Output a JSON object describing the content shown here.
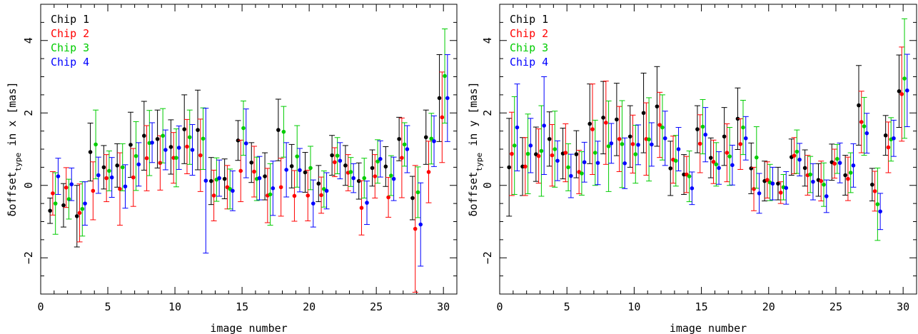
{
  "chart_data": [
    {
      "type": "scatter",
      "title": "",
      "xlabel": "image number",
      "ylabel": "δoffset",
      "ylabel_sub": "type",
      "ylabel_tail": " in x [mas]",
      "xlim": [
        0,
        31
      ],
      "ylim": [
        -3,
        5
      ],
      "xticks": [
        0,
        5,
        10,
        15,
        20,
        25,
        30
      ],
      "yticks": [
        -2,
        0,
        2,
        4
      ],
      "legend_position": "top-left",
      "grid": false,
      "series": [
        {
          "name": "Chip 1",
          "color": "#000000",
          "offset": -0.3,
          "y": [
            -0.7,
            -0.55,
            -0.85,
            0.92,
            0.5,
            0.55,
            1.12,
            1.37,
            1.28,
            1.06,
            1.55,
            1.53,
            0.12,
            0.18,
            1.24,
            0.63,
            0.25,
            1.53,
            0.53,
            0.36,
            0.05,
            0.83,
            0.55,
            0.12,
            0.48,
            0.52,
            1.28,
            -0.35,
            1.33,
            2.41
          ],
          "err": [
            0.35,
            0.6,
            0.85,
            0.8,
            0.6,
            0.6,
            0.9,
            0.95,
            0.8,
            0.75,
            0.95,
            1.1,
            0.65,
            0.55,
            0.55,
            0.55,
            0.65,
            0.85,
            0.6,
            0.55,
            0.5,
            0.55,
            0.55,
            0.5,
            0.5,
            0.55,
            0.6,
            0.6,
            0.75,
            1.2
          ]
        },
        {
          "name": "Chip 2",
          "color": "#ff0000",
          "offset": -0.1,
          "y": [
            -0.22,
            -0.06,
            -0.76,
            -0.15,
            0.2,
            -0.1,
            0.22,
            0.75,
            0.62,
            0.76,
            1.07,
            0.83,
            -0.28,
            -0.05,
            0.4,
            0.38,
            -0.28,
            -0.05,
            -0.29,
            -0.28,
            -0.27,
            0.64,
            0.35,
            -0.62,
            0.25,
            -0.33,
            0.76,
            -1.2,
            0.37,
            1.88
          ],
          "err": [
            0.6,
            0.55,
            0.8,
            0.8,
            0.65,
            1.0,
            0.8,
            0.9,
            0.75,
            0.7,
            0.75,
            1.0,
            0.7,
            0.6,
            0.85,
            0.7,
            0.75,
            0.8,
            0.7,
            0.7,
            0.5,
            0.4,
            0.5,
            0.75,
            0.6,
            0.55,
            1.1,
            1.75,
            0.85,
            1.25
          ]
        },
        {
          "name": "Chip 3",
          "color": "#00cc00",
          "offset": 0.1,
          "y": [
            -0.5,
            -0.38,
            -0.65,
            1.13,
            0.4,
            0.5,
            0.81,
            1.17,
            1.37,
            0.76,
            1.33,
            1.29,
            0.16,
            -0.1,
            1.58,
            0.18,
            -0.25,
            1.48,
            0.8,
            0.48,
            -0.1,
            0.82,
            0.37,
            0.2,
            0.66,
            0.27,
            1.13,
            -0.19,
            1.29,
            3.02
          ],
          "err": [
            0.85,
            0.55,
            0.75,
            0.95,
            0.55,
            0.65,
            0.95,
            0.9,
            0.75,
            0.8,
            0.75,
            0.85,
            0.6,
            0.55,
            0.75,
            0.6,
            0.85,
            0.7,
            0.85,
            0.6,
            0.5,
            0.5,
            0.4,
            0.55,
            0.6,
            0.55,
            0.6,
            0.7,
            0.7,
            1.3
          ]
        },
        {
          "name": "Chip 4",
          "color": "#0000ff",
          "offset": 0.3,
          "y": [
            0.25,
            0.03,
            -0.5,
            0.28,
            0.22,
            -0.03,
            0.58,
            1.18,
            0.98,
            1.04,
            0.98,
            0.13,
            0.2,
            -0.15,
            1.16,
            0.2,
            -0.08,
            0.43,
            0.42,
            -0.5,
            -0.15,
            0.68,
            0.2,
            -0.48,
            0.73,
            0.18,
            1.0,
            -1.08,
            1.22,
            2.41
          ],
          "err": [
            0.5,
            0.45,
            0.6,
            0.5,
            0.55,
            0.6,
            0.6,
            0.55,
            0.55,
            0.6,
            0.7,
            2.0,
            0.5,
            0.55,
            0.95,
            0.6,
            0.75,
            0.75,
            0.6,
            0.65,
            0.5,
            0.5,
            0.4,
            0.6,
            0.5,
            0.6,
            0.65,
            1.15,
            0.7,
            1.2
          ]
        }
      ]
    },
    {
      "type": "scatter",
      "title": "",
      "xlabel": "image number",
      "ylabel": "δoffset",
      "ylabel_sub": "type",
      "ylabel_tail": " in y [mas]",
      "xlim": [
        0,
        31
      ],
      "ylim": [
        -3,
        5
      ],
      "xticks": [
        0,
        5,
        10,
        15,
        20,
        25,
        30
      ],
      "yticks": [
        -2,
        0,
        2,
        4
      ],
      "legend_position": "top-left",
      "grid": false,
      "series": [
        {
          "name": "Chip 1",
          "color": "#000000",
          "offset": -0.3,
          "y": [
            0.5,
            0.52,
            0.86,
            1.28,
            0.88,
            0.86,
            1.7,
            1.87,
            1.82,
            1.35,
            2.0,
            2.18,
            0.47,
            0.3,
            1.55,
            0.76,
            1.35,
            1.84,
            0.47,
            0.12,
            0.05,
            0.78,
            0.48,
            0.15,
            0.64,
            0.28,
            2.21,
            0.02,
            1.38,
            2.6
          ],
          "err": [
            1.35,
            0.8,
            0.75,
            0.75,
            0.7,
            0.65,
            1.1,
            1.0,
            1.0,
            0.85,
            1.1,
            1.1,
            0.75,
            0.55,
            0.65,
            0.55,
            0.8,
            0.85,
            0.7,
            0.55,
            0.45,
            0.5,
            0.5,
            0.45,
            0.5,
            0.55,
            1.1,
            0.45,
            0.55,
            1.0
          ]
        },
        {
          "name": "Chip 2",
          "color": "#ff0000",
          "offset": -0.1,
          "y": [
            0.87,
            0.52,
            0.81,
            0.83,
            0.9,
            0.37,
            1.55,
            1.73,
            1.28,
            1.14,
            1.28,
            1.67,
            0.71,
            0.3,
            1.15,
            0.65,
            0.9,
            1.14,
            -0.1,
            0.15,
            -0.2,
            0.82,
            0.28,
            0.12,
            0.6,
            0.18,
            1.75,
            -0.16,
            1.05,
            2.52
          ],
          "err": [
            1.15,
            0.8,
            0.75,
            0.85,
            0.8,
            0.6,
            1.25,
            1.15,
            0.9,
            0.8,
            1.0,
            0.9,
            0.65,
            0.5,
            0.8,
            0.6,
            0.8,
            0.7,
            0.6,
            0.5,
            0.3,
            0.5,
            0.55,
            0.55,
            0.4,
            0.6,
            0.85,
            0.55,
            0.7,
            1.3
          ]
        },
        {
          "name": "Chip 3",
          "color": "#00cc00",
          "offset": 0.1,
          "y": [
            1.1,
            0.87,
            0.95,
            1.0,
            0.5,
            0.33,
            0.9,
            1.08,
            1.14,
            0.86,
            1.27,
            1.6,
            0.68,
            0.25,
            1.62,
            0.58,
            0.8,
            1.6,
            0.77,
            0.08,
            -0.05,
            0.93,
            0.3,
            0.02,
            0.73,
            0.35,
            1.63,
            -0.52,
            1.27,
            2.95
          ],
          "err": [
            1.35,
            1.1,
            1.25,
            1.05,
            0.65,
            0.6,
            0.9,
            1.25,
            1.2,
            0.8,
            1.15,
            0.9,
            0.7,
            0.7,
            0.75,
            0.6,
            0.8,
            0.75,
            0.85,
            0.5,
            0.35,
            0.6,
            0.5,
            0.6,
            0.4,
            0.55,
            0.8,
            1.0,
            0.6,
            1.65
          ]
        },
        {
          "name": "Chip 4",
          "color": "#0000ff",
          "offset": 0.3,
          "y": [
            1.6,
            1.1,
            1.65,
            0.68,
            0.26,
            0.64,
            0.62,
            1.16,
            0.61,
            1.12,
            1.13,
            1.3,
            1.0,
            -0.08,
            1.4,
            0.48,
            0.56,
            1.3,
            -0.22,
            0.05,
            -0.07,
            0.71,
            0.1,
            -0.3,
            0.62,
            0.55,
            1.44,
            -0.72,
            1.3,
            2.62
          ],
          "err": [
            1.2,
            0.75,
            1.35,
            0.55,
            0.6,
            0.55,
            0.6,
            0.55,
            0.7,
            0.55,
            0.6,
            0.75,
            0.6,
            0.45,
            0.75,
            0.45,
            0.55,
            0.6,
            0.55,
            0.45,
            0.45,
            0.45,
            0.5,
            0.45,
            0.55,
            0.6,
            0.55,
            0.5,
            0.5,
            1.0
          ]
        }
      ]
    }
  ]
}
